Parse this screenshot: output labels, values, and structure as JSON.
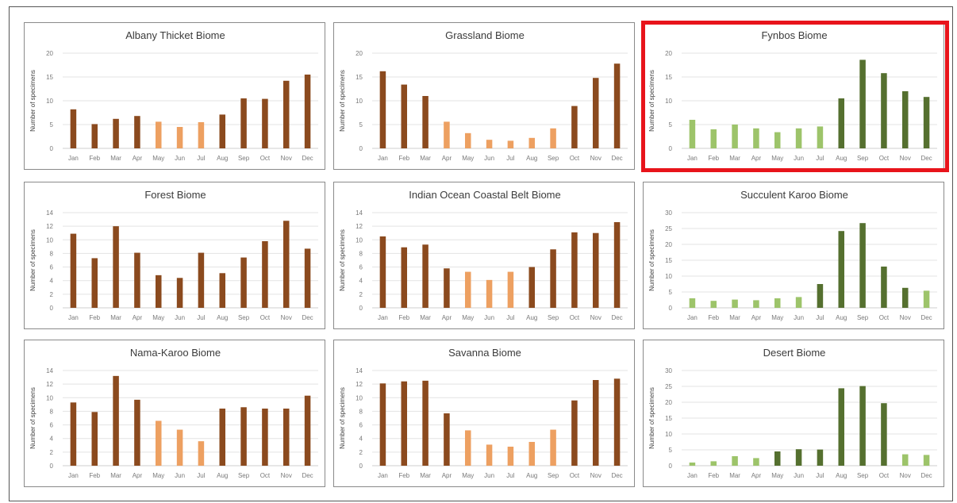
{
  "colors": {
    "brown_dark": "#8b4a1e",
    "brown_light": "#eda061",
    "green_dark": "#55702f",
    "green_light": "#9dc46a",
    "highlight": "#e8141b"
  },
  "ylabel": "Number of specimens",
  "months": [
    "Jan",
    "Feb",
    "Mar",
    "Apr",
    "May",
    "Jun",
    "Jul",
    "Aug",
    "Sep",
    "Oct",
    "Nov",
    "Dec"
  ],
  "chart_data": [
    {
      "type": "bar",
      "title": "Albany Thicket Biome",
      "palette": "brown",
      "ylabel": "Number of specimens",
      "ylim": [
        0,
        20
      ],
      "yticks": [
        0,
        5,
        10,
        15,
        20
      ],
      "categories": [
        "Jan",
        "Feb",
        "Mar",
        "Apr",
        "May",
        "Jun",
        "Jul",
        "Aug",
        "Sep",
        "Oct",
        "Nov",
        "Dec"
      ],
      "values": [
        8.2,
        5.1,
        6.2,
        6.8,
        5.6,
        4.5,
        5.5,
        7.1,
        10.5,
        10.4,
        14.2,
        15.5
      ],
      "highlight": [
        false,
        false,
        false,
        false,
        true,
        true,
        true,
        false,
        false,
        false,
        false,
        false
      ],
      "grid": true,
      "highlighted_panel": false
    },
    {
      "type": "bar",
      "title": "Grassland Biome",
      "palette": "brown",
      "ylabel": "Number of specimens",
      "ylim": [
        0,
        20
      ],
      "yticks": [
        0,
        5,
        10,
        15,
        20
      ],
      "categories": [
        "Jan",
        "Feb",
        "Mar",
        "Apr",
        "May",
        "Jun",
        "Jul",
        "Aug",
        "Sep",
        "Oct",
        "Nov",
        "Dec"
      ],
      "values": [
        16.2,
        13.4,
        11.0,
        5.6,
        3.2,
        1.8,
        1.6,
        2.2,
        4.2,
        8.9,
        14.8,
        17.8
      ],
      "highlight": [
        false,
        false,
        false,
        true,
        true,
        true,
        true,
        true,
        true,
        false,
        false,
        false
      ],
      "grid": true,
      "highlighted_panel": false
    },
    {
      "type": "bar",
      "title": "Fynbos Biome",
      "palette": "green",
      "ylabel": "Number of specimens",
      "ylim": [
        0,
        20
      ],
      "yticks": [
        0,
        5,
        10,
        15,
        20
      ],
      "categories": [
        "Jan",
        "Feb",
        "Mar",
        "Apr",
        "May",
        "Jun",
        "Jul",
        "Aug",
        "Sep",
        "Oct",
        "Nov",
        "Dec"
      ],
      "values": [
        6.0,
        4.0,
        5.0,
        4.2,
        3.4,
        4.2,
        4.6,
        10.5,
        18.6,
        15.8,
        12.0,
        10.8
      ],
      "highlight": [
        true,
        true,
        true,
        true,
        true,
        true,
        true,
        false,
        false,
        false,
        false,
        false
      ],
      "grid": true,
      "highlighted_panel": true
    },
    {
      "type": "bar",
      "title": "Forest Biome",
      "palette": "brown",
      "ylabel": "Number of specimens",
      "ylim": [
        0,
        14
      ],
      "yticks": [
        0,
        2,
        4,
        6,
        8,
        10,
        12,
        14
      ],
      "categories": [
        "Jan",
        "Feb",
        "Mar",
        "Apr",
        "May",
        "Jun",
        "Jul",
        "Aug",
        "Sep",
        "Oct",
        "Nov",
        "Dec"
      ],
      "values": [
        10.9,
        7.3,
        12.0,
        8.1,
        4.8,
        4.4,
        8.1,
        5.1,
        7.4,
        9.8,
        12.8,
        8.7
      ],
      "highlight": [
        false,
        false,
        false,
        false,
        false,
        false,
        false,
        false,
        false,
        false,
        false,
        false
      ],
      "grid": true,
      "highlighted_panel": false
    },
    {
      "type": "bar",
      "title": "Indian Ocean Coastal Belt Biome",
      "palette": "brown",
      "ylabel": "Number of specimens",
      "ylim": [
        0,
        14
      ],
      "yticks": [
        0,
        2,
        4,
        6,
        8,
        10,
        12,
        14
      ],
      "categories": [
        "Jan",
        "Feb",
        "Mar",
        "Apr",
        "May",
        "Jun",
        "Jul",
        "Aug",
        "Sep",
        "Oct",
        "Nov",
        "Dec"
      ],
      "values": [
        10.5,
        8.9,
        9.3,
        5.8,
        5.3,
        4.1,
        5.3,
        6.0,
        8.6,
        11.1,
        11.0,
        12.6
      ],
      "highlight": [
        false,
        false,
        false,
        false,
        true,
        true,
        true,
        false,
        false,
        false,
        false,
        false
      ],
      "grid": true,
      "highlighted_panel": false
    },
    {
      "type": "bar",
      "title": "Succulent Karoo Biome",
      "palette": "green",
      "ylabel": "Number of specimens",
      "ylim": [
        0,
        30
      ],
      "yticks": [
        0,
        5,
        10,
        15,
        20,
        25,
        30
      ],
      "categories": [
        "Jan",
        "Feb",
        "Mar",
        "Apr",
        "May",
        "Jun",
        "Jul",
        "Aug",
        "Sep",
        "Oct",
        "Nov",
        "Dec"
      ],
      "values": [
        3.0,
        2.2,
        2.6,
        2.4,
        3.0,
        3.4,
        7.5,
        24.2,
        26.7,
        13.0,
        6.3,
        5.4
      ],
      "highlight": [
        true,
        true,
        true,
        true,
        true,
        true,
        false,
        false,
        false,
        false,
        false,
        true
      ],
      "grid": true,
      "highlighted_panel": false
    },
    {
      "type": "bar",
      "title": "Nama-Karoo Biome",
      "palette": "brown",
      "ylabel": "Number of specimens",
      "ylim": [
        0,
        14
      ],
      "yticks": [
        0,
        2,
        4,
        6,
        8,
        10,
        12,
        14
      ],
      "categories": [
        "Jan",
        "Feb",
        "Mar",
        "Apr",
        "May",
        "Jun",
        "Jul",
        "Aug",
        "Sep",
        "Oct",
        "Nov",
        "Dec"
      ],
      "values": [
        9.3,
        7.9,
        13.2,
        9.7,
        6.6,
        5.3,
        3.6,
        8.4,
        8.6,
        8.4,
        8.4,
        10.3
      ],
      "highlight": [
        false,
        false,
        false,
        false,
        true,
        true,
        true,
        false,
        false,
        false,
        false,
        false
      ],
      "grid": true,
      "highlighted_panel": false
    },
    {
      "type": "bar",
      "title": "Savanna Biome",
      "palette": "brown",
      "ylabel": "Number of specimens",
      "ylim": [
        0,
        14
      ],
      "yticks": [
        0,
        2,
        4,
        6,
        8,
        10,
        12,
        14
      ],
      "categories": [
        "Jan",
        "Feb",
        "Mar",
        "Apr",
        "May",
        "Jun",
        "Jul",
        "Aug",
        "Sep",
        "Oct",
        "Nov",
        "Dec"
      ],
      "values": [
        12.1,
        12.4,
        12.5,
        7.7,
        5.2,
        3.1,
        2.8,
        3.5,
        5.3,
        9.6,
        12.6,
        12.8
      ],
      "highlight": [
        false,
        false,
        false,
        false,
        true,
        true,
        true,
        true,
        true,
        false,
        false,
        false
      ],
      "grid": true,
      "highlighted_panel": false
    },
    {
      "type": "bar",
      "title": "Desert Biome",
      "palette": "green",
      "ylabel": "Number of specimens",
      "ylim": [
        0,
        30
      ],
      "yticks": [
        0,
        5,
        10,
        15,
        20,
        25,
        30
      ],
      "categories": [
        "Jan",
        "Feb",
        "Mar",
        "Apr",
        "May",
        "Jun",
        "Jul",
        "Aug",
        "Sep",
        "Oct",
        "Nov",
        "Dec"
      ],
      "values": [
        1.0,
        1.4,
        3.0,
        2.4,
        4.5,
        5.2,
        5.1,
        24.4,
        25.1,
        19.7,
        3.6,
        3.4
      ],
      "highlight": [
        true,
        true,
        true,
        true,
        false,
        false,
        false,
        false,
        false,
        false,
        true,
        true
      ],
      "grid": true,
      "highlighted_panel": false
    }
  ]
}
